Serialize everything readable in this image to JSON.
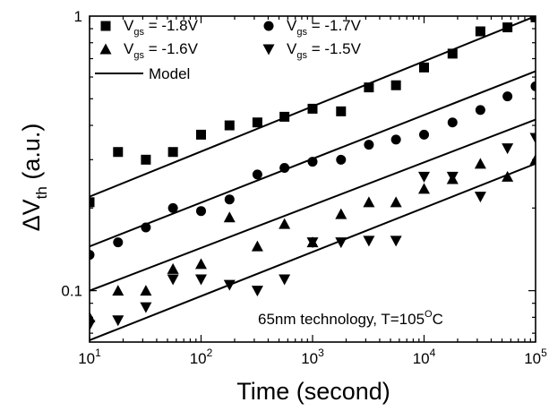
{
  "chart_data": {
    "type": "scatter",
    "x_scale": "log",
    "y_scale": "log",
    "xlim": [
      10,
      100000
    ],
    "ylim": [
      0.065,
      1
    ],
    "xlabel": "Time (second)",
    "ylabel": {
      "delta": "ΔV",
      "sub": "th",
      "rest": " (a.u.)"
    },
    "x_ticks": [
      {
        "base": "10",
        "exp": "1",
        "value": 10
      },
      {
        "base": "10",
        "exp": "2",
        "value": 100
      },
      {
        "base": "10",
        "exp": "3",
        "value": 1000
      },
      {
        "base": "10",
        "exp": "4",
        "value": 10000
      },
      {
        "base": "10",
        "exp": "5",
        "value": 100000
      }
    ],
    "y_ticks": [
      {
        "label": "0.1",
        "value": 0.1
      },
      {
        "label": "1",
        "value": 1
      }
    ],
    "annotation": {
      "text": "65nm technology, T=105",
      "sup": "O",
      "suffix": "C"
    },
    "legend_placement": "top-left",
    "series": [
      {
        "name": {
          "main": "V",
          "sub": "gs",
          "rest": " = -1.8V"
        },
        "marker": "square",
        "x": [
          10,
          18,
          32,
          56,
          100,
          180,
          320,
          560,
          1000,
          1800,
          3200,
          5600,
          10000,
          18000,
          32000,
          56000,
          100000
        ],
        "y": [
          0.21,
          0.32,
          0.3,
          0.32,
          0.37,
          0.4,
          0.41,
          0.43,
          0.46,
          0.45,
          0.55,
          0.56,
          0.65,
          0.73,
          0.88,
          0.91,
          0.99
        ],
        "model": [
          0.22,
          1.0
        ]
      },
      {
        "name": {
          "main": "V",
          "sub": "gs",
          "rest": " = -1.7V"
        },
        "marker": "circle",
        "x": [
          10,
          18,
          32,
          56,
          100,
          180,
          320,
          560,
          1000,
          1800,
          3200,
          5600,
          10000,
          18000,
          32000,
          56000,
          100000
        ],
        "y": [
          0.135,
          0.15,
          0.17,
          0.2,
          0.195,
          0.215,
          0.265,
          0.28,
          0.295,
          0.3,
          0.34,
          0.355,
          0.37,
          0.41,
          0.455,
          0.51,
          0.555
        ],
        "model": [
          0.145,
          0.63
        ]
      },
      {
        "name": {
          "main": "V",
          "sub": "gs",
          "rest": " = -1.6V"
        },
        "marker": "triangle-up",
        "x": [
          10,
          18,
          32,
          56,
          100,
          180,
          320,
          560,
          1000,
          1800,
          3200,
          5600,
          10000,
          18000,
          32000,
          56000,
          100000
        ],
        "y": [
          0.08,
          0.1,
          0.1,
          0.12,
          0.125,
          0.185,
          0.145,
          0.175,
          0.15,
          0.19,
          0.21,
          0.21,
          0.235,
          0.255,
          0.29,
          0.26,
          0.3
        ],
        "model": [
          0.1,
          0.42
        ]
      },
      {
        "name": {
          "main": "V",
          "sub": "gs",
          "rest": " = -1.5V"
        },
        "marker": "triangle-down",
        "x": [
          10,
          18,
          32,
          56,
          100,
          180,
          320,
          560,
          1000,
          1800,
          3200,
          5600,
          10000,
          18000,
          32000,
          56000,
          100000
        ],
        "y": [
          0.075,
          0.078,
          0.087,
          0.11,
          0.11,
          0.105,
          0.1,
          0.11,
          0.15,
          0.15,
          0.152,
          0.152,
          0.26,
          0.26,
          0.22,
          0.33,
          0.36
        ],
        "model": [
          0.066,
          0.29
        ]
      }
    ],
    "model_legend": "Model"
  }
}
